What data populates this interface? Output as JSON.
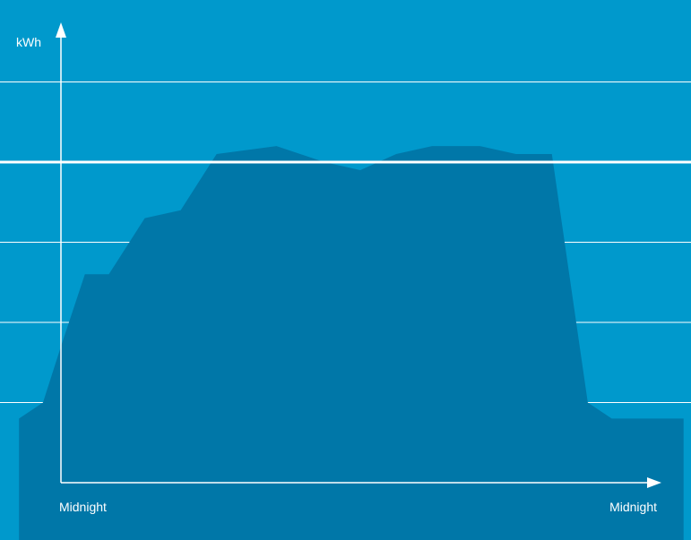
{
  "colors": {
    "background": "#0099cc",
    "area_fill": "#0077a8",
    "axis": "#ffffff",
    "grid": "#ffffff"
  },
  "chart_data": {
    "type": "area",
    "title": "",
    "ylabel": "kWh",
    "x_start_label": "Midnight",
    "x_end_label": "Midnight",
    "ylim": [
      0,
      5.5
    ],
    "grid": true,
    "gridlines": [
      1,
      2,
      3,
      4,
      5
    ],
    "reference_line": 4,
    "x": [
      -0.7,
      -0.3,
      0,
      0.4,
      0.8,
      1.4,
      2,
      2.6,
      3.6,
      4.4,
      5,
      5.6,
      6.2,
      7.0,
      7.6,
      8.2,
      8.8,
      9.2,
      9.7,
      10.4
    ],
    "values": [
      0.8,
      1.0,
      1.7,
      2.6,
      2.6,
      3.3,
      3.4,
      4.1,
      4.2,
      4.0,
      3.9,
      4.1,
      4.2,
      4.2,
      4.1,
      4.1,
      1.0,
      0.8,
      0.8,
      0.8
    ]
  }
}
